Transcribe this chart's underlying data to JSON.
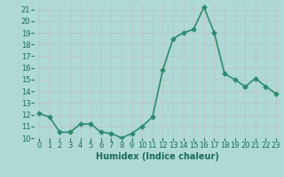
{
  "x": [
    0,
    1,
    2,
    3,
    4,
    5,
    6,
    7,
    8,
    9,
    10,
    11,
    12,
    13,
    14,
    15,
    16,
    17,
    18,
    19,
    20,
    21,
    22,
    23
  ],
  "y": [
    12.1,
    11.8,
    10.5,
    10.5,
    11.2,
    11.2,
    10.5,
    10.4,
    10.0,
    10.4,
    11.0,
    11.8,
    15.8,
    18.5,
    19.0,
    19.3,
    21.2,
    19.0,
    15.5,
    15.0,
    14.4,
    15.1,
    14.4,
    13.8
  ],
  "xlabel": "Humidex (Indice chaleur)",
  "line_color": "#2e8b70",
  "marker": "D",
  "marker_size": 2.5,
  "bg_color": "#aed9d5",
  "grid_color": "#c0c0c0",
  "ylim": [
    10,
    21.5
  ],
  "xlim": [
    -0.5,
    23.5
  ],
  "yticks": [
    10,
    11,
    12,
    13,
    14,
    15,
    16,
    17,
    18,
    19,
    20,
    21
  ],
  "xticks": [
    0,
    1,
    2,
    3,
    4,
    5,
    6,
    7,
    8,
    9,
    10,
    11,
    12,
    13,
    14,
    15,
    16,
    17,
    18,
    19,
    20,
    21,
    22,
    23
  ],
  "xtick_labels": [
    "0",
    "1",
    "2",
    "3",
    "4",
    "5",
    "6",
    "7",
    "8",
    "9",
    "10",
    "11",
    "12",
    "13",
    "14",
    "15",
    "16",
    "17",
    "18",
    "19",
    "20",
    "21",
    "22",
    "23"
  ],
  "tick_color": "#1a6b5a",
  "xlabel_fontsize": 7,
  "tick_fontsize": 6,
  "linewidth": 1.2
}
